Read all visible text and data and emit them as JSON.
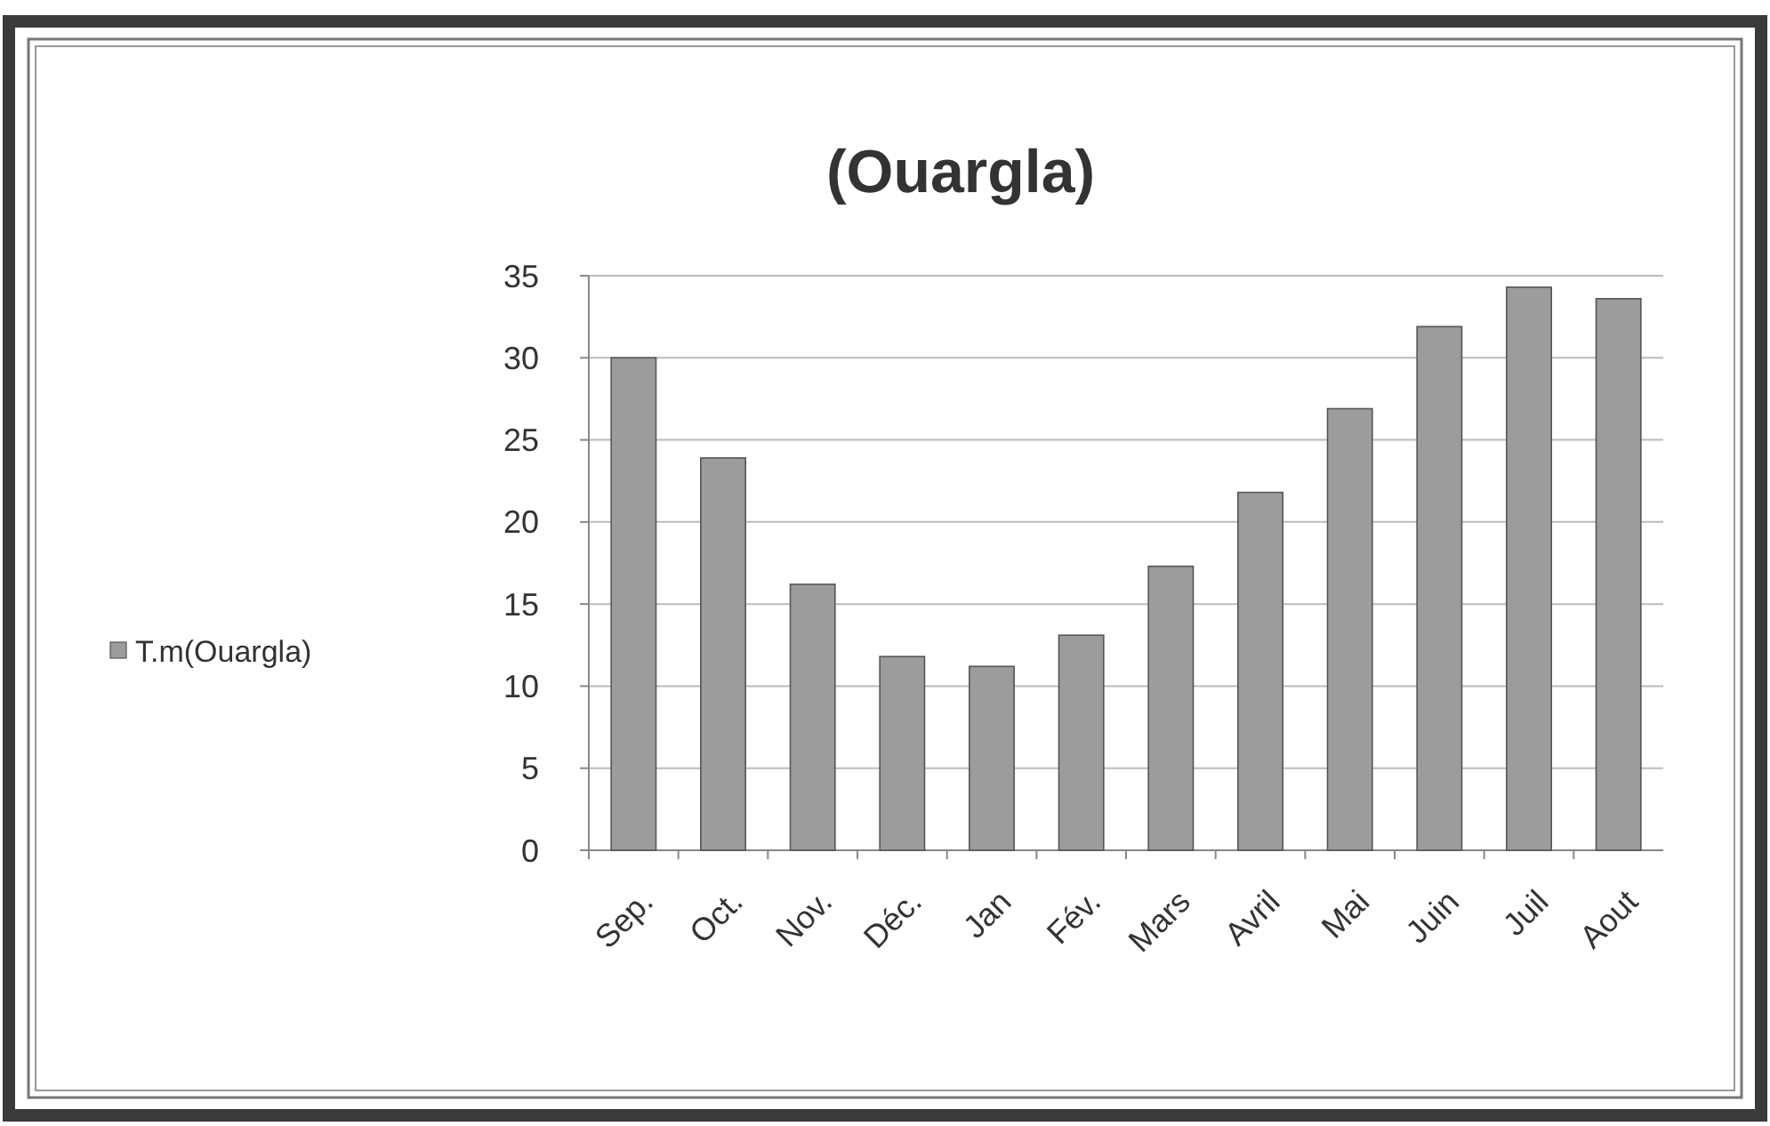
{
  "chart_data": {
    "type": "bar",
    "title": "(Ouargla)",
    "categories": [
      "Sep.",
      "Oct.",
      "Nov.",
      "Déc.",
      "Jan",
      "Fév.",
      "Mars",
      "Avril",
      "Mai",
      "Juin",
      "Juil",
      "Aout"
    ],
    "series": [
      {
        "name": "T.m(Ouargla)",
        "color": "#9c9c9c",
        "values": [
          30,
          23.9,
          16.2,
          11.8,
          11.2,
          13.1,
          17.3,
          21.8,
          26.9,
          31.9,
          34.3,
          33.6
        ]
      }
    ],
    "ylim": [
      0,
      35
    ],
    "yticks": [
      0,
      5,
      10,
      15,
      20,
      25,
      30,
      35
    ],
    "grid": "y",
    "legend": "left"
  }
}
